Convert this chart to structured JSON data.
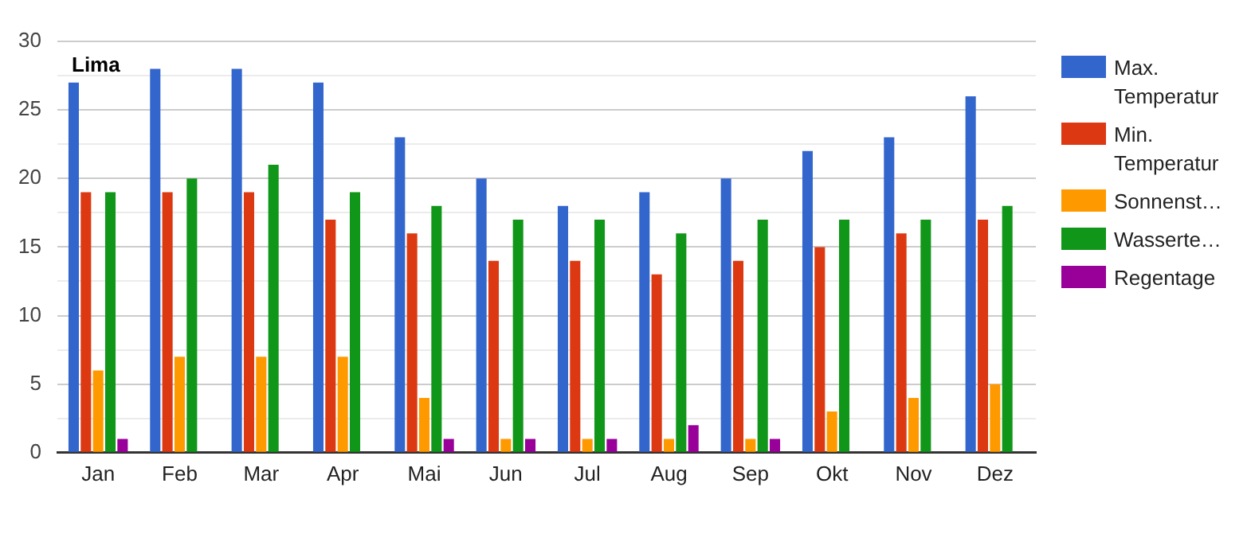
{
  "chart_data": {
    "type": "bar",
    "title": "Lima",
    "categories": [
      "Jan",
      "Feb",
      "Mar",
      "Apr",
      "Mai",
      "Jun",
      "Jul",
      "Aug",
      "Sep",
      "Okt",
      "Nov",
      "Dez"
    ],
    "series": [
      {
        "name": "Max. Temperatur",
        "color": "#3366cc",
        "values": [
          27,
          28,
          28,
          27,
          23,
          20,
          18,
          19,
          20,
          22,
          23,
          26
        ]
      },
      {
        "name": "Min. Temperatur",
        "color": "#dc3912",
        "values": [
          19,
          19,
          19,
          17,
          16,
          14,
          14,
          13,
          14,
          15,
          16,
          17
        ]
      },
      {
        "name": "Sonnenst…",
        "color": "#ff9900",
        "values": [
          6,
          7,
          7,
          7,
          4,
          1,
          1,
          1,
          1,
          3,
          4,
          5
        ]
      },
      {
        "name": "Wasserte…",
        "color": "#109618",
        "values": [
          19,
          20,
          21,
          19,
          18,
          17,
          17,
          16,
          17,
          17,
          17,
          18
        ]
      },
      {
        "name": "Regentage",
        "color": "#990099",
        "values": [
          1,
          0,
          0,
          0,
          1,
          1,
          1,
          2,
          1,
          0,
          0,
          0
        ]
      }
    ],
    "ylim": [
      0,
      30
    ],
    "yticks": [
      0,
      {
        "value": 2.5,
        "label": null
      },
      5,
      {
        "value": 7.5,
        "label": null
      },
      10,
      {
        "value": 12.5,
        "label": null
      },
      15,
      {
        "value": 17.5,
        "label": null
      },
      20,
      {
        "value": 22.5,
        "label": null
      },
      25,
      {
        "value": 27.5,
        "label": null
      },
      30
    ],
    "grid": "y",
    "legend": "right"
  }
}
